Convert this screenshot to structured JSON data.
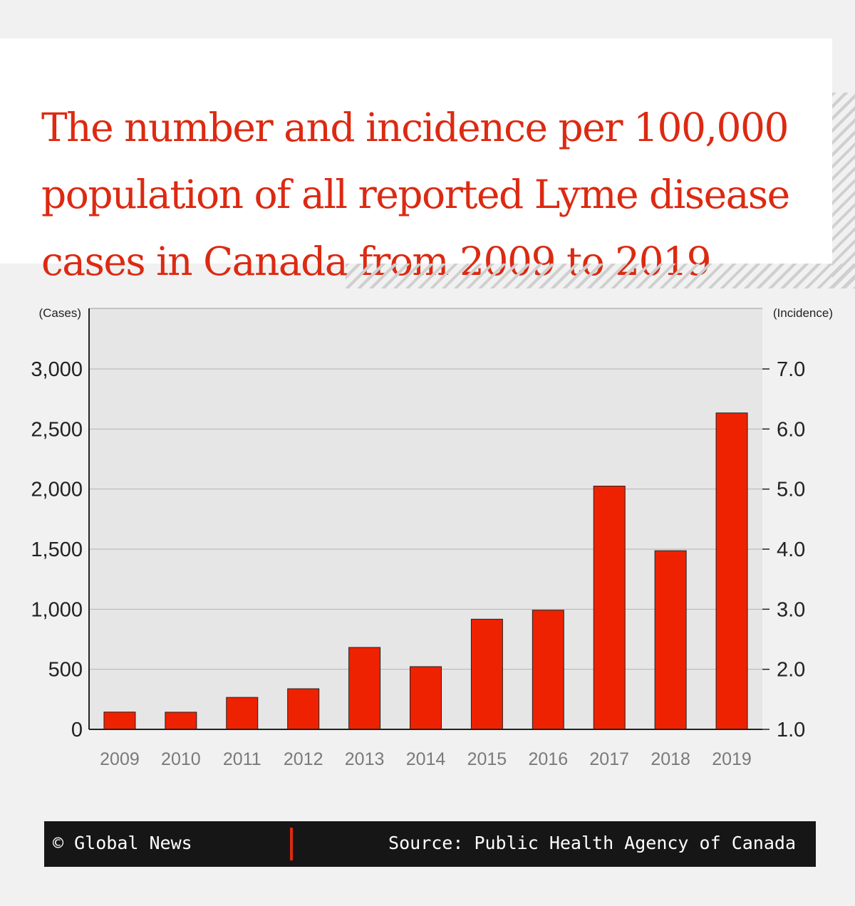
{
  "title": "The number and incidence per 100,000 population of all reported Lyme disease cases in Canada from 2009 to 2019",
  "colors": {
    "accent": "#dc2a12",
    "bar": "#ee2200",
    "plot_bg": "#e6e6e6",
    "footer_bg": "#161616"
  },
  "footer": {
    "copyright_symbol": "©",
    "brand": "Global News",
    "source": "Source: Public Health Agency of Canada"
  },
  "chart_data": {
    "type": "bar",
    "categories": [
      "2009",
      "2010",
      "2011",
      "2012",
      "2013",
      "2014",
      "2015",
      "2016",
      "2017",
      "2018",
      "2019"
    ],
    "values": [
      144,
      143,
      266,
      338,
      682,
      522,
      917,
      992,
      2025,
      1487,
      2634
    ],
    "y_left": {
      "label": "(Cases)",
      "ylim": [
        0,
        3000
      ],
      "ticks": [
        0,
        500,
        1000,
        1500,
        2000,
        2500,
        3000
      ],
      "tick_labels": [
        "0",
        "500",
        "1,000",
        "1,500",
        "2,000",
        "2,500",
        "3,000"
      ]
    },
    "y_right": {
      "label": "(Incidence)",
      "ylim": [
        1.0,
        7.0
      ],
      "ticks": [
        1.0,
        2.0,
        3.0,
        4.0,
        5.0,
        6.0,
        7.0
      ],
      "tick_labels": [
        "1.0",
        "2.0",
        "3.0",
        "4.0",
        "5.0",
        "6.0",
        "7.0"
      ]
    },
    "grid": true
  }
}
